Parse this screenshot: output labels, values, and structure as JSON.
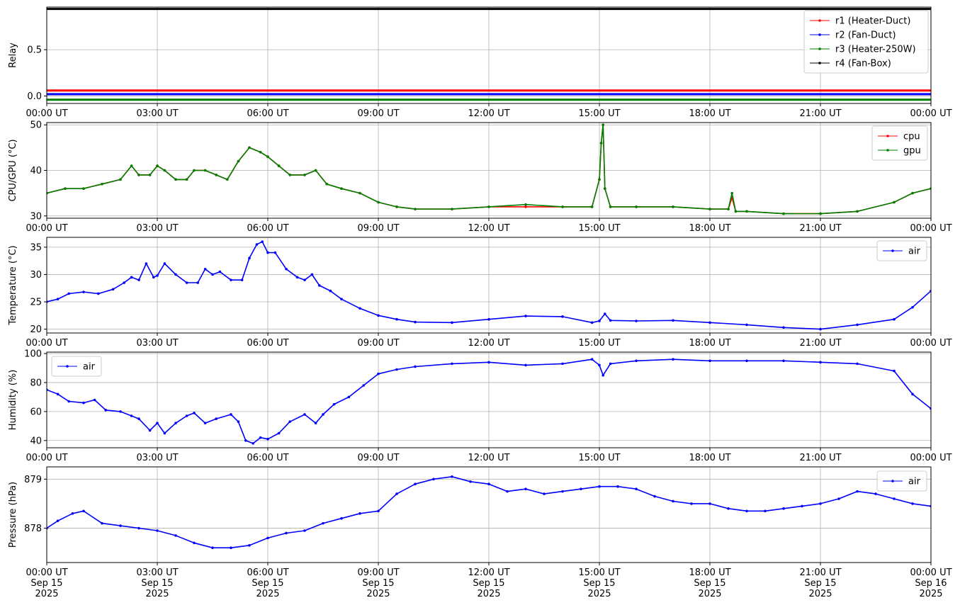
{
  "chart_data": [
    {
      "type": "line",
      "ylabel": "Relay",
      "ylim": [
        -0.08,
        0.96
      ],
      "yticks": [
        0.0,
        0.5
      ],
      "ytick_labels": [
        "0.0",
        "0.5"
      ],
      "xlim": [
        0,
        24
      ],
      "xticks": [
        0,
        3,
        6,
        9,
        12,
        15,
        18,
        21,
        24
      ],
      "xtick_labels": [
        "00:00 UT",
        "03:00 UT",
        "06:00 UT",
        "09:00 UT",
        "12:00 UT",
        "15:00 UT",
        "18:00 UT",
        "21:00 UT",
        "00:00 UT"
      ],
      "grid": true,
      "legend_position": "upper right",
      "series": [
        {
          "name": "r1 (Heater-Duct)",
          "color": "#ff0000",
          "x": [
            0,
            24
          ],
          "y": [
            0.06,
            0.06
          ]
        },
        {
          "name": "r2 (Fan-Duct)",
          "color": "#0000ff",
          "x": [
            0,
            24
          ],
          "y": [
            0.02,
            0.02
          ]
        },
        {
          "name": "r3 (Heater-250W)",
          "color": "#008000",
          "x": [
            0,
            24
          ],
          "y": [
            -0.04,
            -0.04
          ]
        },
        {
          "name": "r4 (Fan-Box)",
          "color": "#000000",
          "x": [
            0,
            24
          ],
          "y": [
            0.94,
            0.94
          ]
        }
      ]
    },
    {
      "type": "line",
      "ylabel": "CPU/GPU (°C)",
      "ylim": [
        29.5,
        50.5
      ],
      "yticks": [
        30,
        40,
        50
      ],
      "ytick_labels": [
        "30",
        "40",
        "50"
      ],
      "xlim": [
        0,
        24
      ],
      "xticks": [
        0,
        3,
        6,
        9,
        12,
        15,
        18,
        21,
        24
      ],
      "xtick_labels": [
        "00:00 UT",
        "03:00 UT",
        "06:00 UT",
        "09:00 UT",
        "12:00 UT",
        "15:00 UT",
        "18:00 UT",
        "21:00 UT",
        "00:00 UT"
      ],
      "grid": true,
      "legend_position": "upper right",
      "series": [
        {
          "name": "cpu",
          "color": "#ff0000",
          "x": [
            0,
            0.5,
            1,
            1.5,
            2,
            2.3,
            2.5,
            2.8,
            3.0,
            3.2,
            3.5,
            3.8,
            4.0,
            4.3,
            4.6,
            4.9,
            5.2,
            5.5,
            5.8,
            6.0,
            6.3,
            6.6,
            7.0,
            7.3,
            7.6,
            8.0,
            8.5,
            9.0,
            9.5,
            10,
            11,
            12,
            13,
            14,
            14.8,
            15.0,
            15.05,
            15.1,
            15.15,
            15.3,
            16,
            17,
            18.0,
            18.5,
            18.6,
            18.7,
            19,
            20,
            21,
            22,
            23,
            23.5,
            24
          ],
          "y": [
            35,
            36,
            36,
            37,
            38,
            41,
            39,
            39,
            41,
            40,
            38,
            38,
            40,
            40,
            39,
            38,
            42,
            45,
            44,
            43,
            41,
            39,
            39,
            40,
            37,
            36,
            35,
            33,
            32,
            31.5,
            31.5,
            32,
            32,
            32,
            32,
            38,
            46,
            50,
            36,
            32,
            32,
            32,
            31.5,
            31.5,
            34,
            31,
            31,
            30.5,
            30.5,
            31,
            33,
            35,
            36
          ]
        },
        {
          "name": "gpu",
          "color": "#008000",
          "x": [
            0,
            0.5,
            1,
            1.5,
            2,
            2.3,
            2.5,
            2.8,
            3.0,
            3.2,
            3.5,
            3.8,
            4.0,
            4.3,
            4.6,
            4.9,
            5.2,
            5.5,
            5.8,
            6.0,
            6.3,
            6.6,
            7.0,
            7.3,
            7.6,
            8.0,
            8.5,
            9.0,
            9.5,
            10,
            11,
            12,
            13,
            14,
            14.8,
            15.0,
            15.05,
            15.1,
            15.15,
            15.3,
            16,
            17,
            18.0,
            18.5,
            18.6,
            18.7,
            19,
            20,
            21,
            22,
            23,
            23.5,
            24
          ],
          "y": [
            35,
            36,
            36,
            37,
            38,
            41,
            39,
            39,
            41,
            40,
            38,
            38,
            40,
            40,
            39,
            38,
            42,
            45,
            44,
            43,
            41,
            39,
            39,
            40,
            37,
            36,
            35,
            33,
            32,
            31.5,
            31.5,
            32,
            32.5,
            32,
            32,
            38,
            46,
            50,
            36,
            32,
            32,
            32,
            31.5,
            31.5,
            35,
            31,
            31,
            30.5,
            30.5,
            31,
            33,
            35,
            36
          ]
        }
      ]
    },
    {
      "type": "line",
      "ylabel": "Temperature (°C)",
      "ylim": [
        19.3,
        36.8
      ],
      "yticks": [
        20,
        25,
        30,
        35
      ],
      "ytick_labels": [
        "20",
        "25",
        "30",
        "35"
      ],
      "xlim": [
        0,
        24
      ],
      "xticks": [
        0,
        3,
        6,
        9,
        12,
        15,
        18,
        21,
        24
      ],
      "xtick_labels": [
        "00:00 UT",
        "03:00 UT",
        "06:00 UT",
        "09:00 UT",
        "12:00 UT",
        "15:00 UT",
        "18:00 UT",
        "21:00 UT",
        "00:00 UT"
      ],
      "grid": true,
      "legend_position": "upper right",
      "series": [
        {
          "name": "air",
          "color": "#0000ff",
          "x": [
            0,
            0.3,
            0.6,
            1.0,
            1.4,
            1.8,
            2.1,
            2.3,
            2.5,
            2.7,
            2.9,
            3.0,
            3.2,
            3.5,
            3.8,
            4.1,
            4.3,
            4.5,
            4.7,
            5.0,
            5.3,
            5.5,
            5.7,
            5.85,
            6.0,
            6.2,
            6.5,
            6.8,
            7.0,
            7.2,
            7.4,
            7.7,
            8.0,
            8.5,
            9.0,
            9.5,
            10,
            11,
            12,
            13,
            14,
            14.8,
            15.0,
            15.15,
            15.3,
            16,
            17,
            18,
            19,
            20,
            21,
            22,
            23,
            23.5,
            24
          ],
          "y": [
            25,
            25.5,
            26.5,
            26.8,
            26.5,
            27.3,
            28.5,
            29.5,
            29,
            32,
            29.5,
            29.8,
            32,
            30,
            28.5,
            28.5,
            31,
            30,
            30.5,
            29,
            29,
            33,
            35.5,
            36,
            34,
            34,
            31,
            29.5,
            29,
            30,
            28,
            27,
            25.5,
            23.8,
            22.5,
            21.8,
            21.3,
            21.2,
            21.8,
            22.4,
            22.3,
            21.2,
            21.5,
            22.8,
            21.6,
            21.5,
            21.6,
            21.2,
            20.8,
            20.3,
            20.0,
            20.8,
            21.8,
            24,
            27
          ]
        }
      ]
    },
    {
      "type": "line",
      "ylabel": "Humidity (%)",
      "ylim": [
        35,
        101
      ],
      "yticks": [
        40,
        60,
        80,
        100
      ],
      "ytick_labels": [
        "40",
        "60",
        "80",
        "100"
      ],
      "xlim": [
        0,
        24
      ],
      "xticks": [
        0,
        3,
        6,
        9,
        12,
        15,
        18,
        21,
        24
      ],
      "xtick_labels": [
        "00:00 UT",
        "03:00 UT",
        "06:00 UT",
        "09:00 UT",
        "12:00 UT",
        "15:00 UT",
        "18:00 UT",
        "21:00 UT",
        "00:00 UT"
      ],
      "grid": true,
      "legend_position": "upper left",
      "series": [
        {
          "name": "air",
          "color": "#0000ff",
          "x": [
            0,
            0.3,
            0.6,
            1.0,
            1.3,
            1.6,
            2.0,
            2.3,
            2.5,
            2.8,
            3.0,
            3.2,
            3.5,
            3.8,
            4.0,
            4.3,
            4.6,
            5.0,
            5.2,
            5.4,
            5.6,
            5.8,
            6.0,
            6.3,
            6.6,
            7.0,
            7.3,
            7.5,
            7.8,
            8.2,
            8.6,
            9.0,
            9.5,
            10,
            11,
            12,
            13,
            14,
            14.8,
            15.0,
            15.1,
            15.3,
            16,
            17,
            18,
            19,
            20,
            21,
            22,
            23,
            23.5,
            24
          ],
          "y": [
            75,
            72,
            67,
            66,
            68,
            61,
            60,
            57,
            55,
            47,
            52,
            45,
            52,
            57,
            59,
            52,
            55,
            58,
            53,
            40,
            38,
            42,
            41,
            45,
            53,
            58,
            52,
            58,
            65,
            70,
            78,
            86,
            89,
            91,
            93,
            94,
            92,
            93,
            96,
            92,
            85,
            93,
            95,
            96,
            95,
            95,
            95,
            94,
            93,
            88,
            72,
            62
          ]
        }
      ]
    },
    {
      "type": "line",
      "ylabel": "Pressure (hPa)",
      "ylim": [
        877.3,
        879.25
      ],
      "yticks": [
        878,
        879
      ],
      "ytick_labels": [
        "878",
        "879"
      ],
      "xlim": [
        0,
        24
      ],
      "xticks": [
        0,
        3,
        6,
        9,
        12,
        15,
        18,
        21,
        24
      ],
      "xtick_labels": [
        "00:00 UT\nSep 15\n2025",
        "03:00 UT\nSep 15\n2025",
        "06:00 UT\nSep 15\n2025",
        "09:00 UT\nSep 15\n2025",
        "12:00 UT\nSep 15\n2025",
        "15:00 UT\nSep 15\n2025",
        "18:00 UT\nSep 15\n2025",
        "21:00 UT\nSep 15\n2025",
        "00:00 UT\nSep 16\n2025"
      ],
      "grid": true,
      "legend_position": "upper right",
      "series": [
        {
          "name": "air",
          "color": "#0000ff",
          "x": [
            0,
            0.3,
            0.7,
            1.0,
            1.5,
            2.0,
            2.5,
            3.0,
            3.5,
            4.0,
            4.5,
            5.0,
            5.5,
            6.0,
            6.5,
            7.0,
            7.5,
            8.0,
            8.5,
            9.0,
            9.5,
            10,
            10.5,
            11,
            11.5,
            12,
            12.5,
            13,
            13.5,
            14,
            14.5,
            15,
            15.5,
            16,
            16.5,
            17,
            17.5,
            18,
            18.5,
            19,
            19.5,
            20,
            20.5,
            21,
            21.5,
            22,
            22.5,
            23,
            23.5,
            24
          ],
          "y": [
            878.0,
            878.15,
            878.3,
            878.35,
            878.1,
            878.05,
            878.0,
            877.95,
            877.85,
            877.7,
            877.6,
            877.6,
            877.65,
            877.8,
            877.9,
            877.95,
            878.1,
            878.2,
            878.3,
            878.35,
            878.7,
            878.9,
            879.0,
            879.05,
            878.95,
            878.9,
            878.75,
            878.8,
            878.7,
            878.75,
            878.8,
            878.85,
            878.85,
            878.8,
            878.65,
            878.55,
            878.5,
            878.5,
            878.4,
            878.35,
            878.35,
            878.4,
            878.45,
            878.5,
            878.6,
            878.75,
            878.7,
            878.6,
            878.5,
            878.45
          ]
        }
      ]
    }
  ]
}
